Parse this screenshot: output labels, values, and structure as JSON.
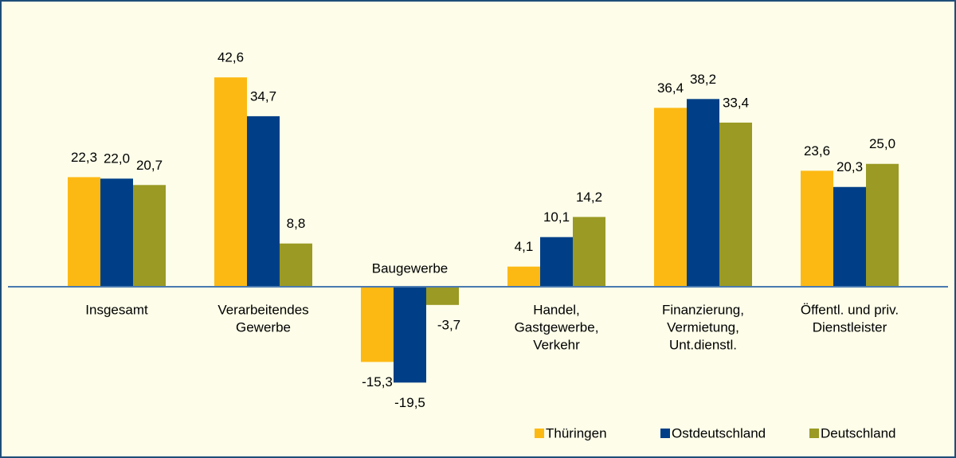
{
  "chart_data": {
    "type": "bar",
    "categories": [
      [
        "Insgesamt"
      ],
      [
        "Verarbeitendes",
        "Gewerbe"
      ],
      [
        "Baugewerbe"
      ],
      [
        "Handel,",
        "Gastgewerbe,",
        "Verkehr"
      ],
      [
        "Finanzierung,",
        "Vermietung,",
        "Unt.dienstl."
      ],
      [
        "Öffentl. und priv.",
        "Dienstleister"
      ]
    ],
    "series": [
      {
        "name": "Thüringen",
        "color": "#fdb913",
        "values": [
          22.3,
          42.6,
          -15.3,
          4.1,
          36.4,
          23.6
        ],
        "value_labels": [
          "22,3",
          "42,6",
          "-15,3",
          "4,1",
          "36,4",
          "23,6"
        ]
      },
      {
        "name": "Ostdeutschland",
        "color": "#003f87",
        "values": [
          22.0,
          34.7,
          -19.5,
          10.1,
          38.2,
          20.3
        ],
        "value_labels": [
          "22,0",
          "34,7",
          "-19,5",
          "10,1",
          "38,2",
          "20,3"
        ]
      },
      {
        "name": "Deutschland",
        "color": "#9a9a24",
        "values": [
          20.7,
          8.8,
          -3.7,
          14.2,
          33.4,
          25.0
        ],
        "value_labels": [
          "20,7",
          "8,8",
          "-3,7",
          "14,2",
          "33,4",
          "25,0"
        ]
      }
    ],
    "legend": "bottom-right"
  }
}
